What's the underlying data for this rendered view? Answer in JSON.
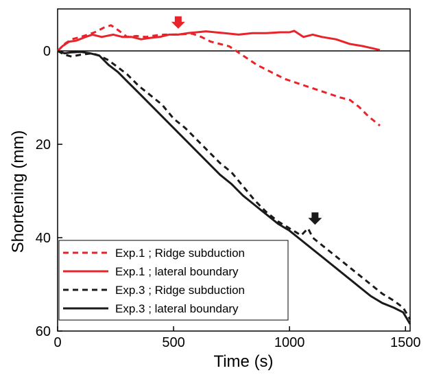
{
  "chart_data": {
    "type": "line",
    "title": "",
    "xlabel": "Time (s)",
    "ylabel": "Shortening (mm)",
    "xlim": [
      0,
      1520
    ],
    "ylim": [
      0,
      60
    ],
    "y_axis_inverted": true,
    "y_axis_extends_above_zero_to": -9,
    "xticks": [
      0,
      500,
      1000,
      1500
    ],
    "yticks": [
      0,
      20,
      40,
      60
    ],
    "grid": false,
    "zero_line": true,
    "legend_position": "bottom-left",
    "series": [
      {
        "name": "Exp.1 ; Ridge subduction",
        "color": "#e8232a",
        "dash": "dashed",
        "x": [
          0,
          30,
          60,
          100,
          130,
          160,
          200,
          230,
          260,
          300,
          340,
          380,
          420,
          460,
          500,
          540,
          580,
          620,
          660,
          700,
          740,
          800,
          860,
          920,
          980,
          1040,
          1100,
          1160,
          1220,
          1260,
          1300,
          1340,
          1390
        ],
        "y": [
          0,
          -1.5,
          -2.5,
          -3,
          -3.5,
          -4,
          -5,
          -5.5,
          -4.5,
          -3,
          -3.2,
          -3,
          -3.3,
          -3.5,
          -3.5,
          -3.6,
          -3.7,
          -3.0,
          -2.0,
          -1.5,
          -1.0,
          1.0,
          3.0,
          4.5,
          6.0,
          7.0,
          8.0,
          9.0,
          10.0,
          10.5,
          12.0,
          14.0,
          16.0
        ]
      },
      {
        "name": "Exp.1 ; lateral boundary",
        "color": "#e8232a",
        "dash": "solid",
        "x": [
          0,
          20,
          50,
          80,
          120,
          150,
          190,
          240,
          280,
          320,
          360,
          400,
          440,
          480,
          520,
          560,
          600,
          640,
          680,
          720,
          780,
          840,
          900,
          960,
          1000,
          1020,
          1060,
          1100,
          1140,
          1200,
          1260,
          1320,
          1390
        ],
        "y": [
          0,
          -1.0,
          -2.0,
          -2.2,
          -3.0,
          -3.5,
          -3.0,
          -3.5,
          -3.0,
          -3.0,
          -2.5,
          -2.8,
          -3.0,
          -3.5,
          -3.5,
          -3.8,
          -4.0,
          -4.2,
          -4.0,
          -3.8,
          -3.5,
          -3.8,
          -3.8,
          -4.0,
          -4.0,
          -4.3,
          -3.0,
          -3.5,
          -3.0,
          -2.5,
          -1.5,
          -1.0,
          -0.2
        ]
      },
      {
        "name": "Exp.3 ; Ridge subduction",
        "color": "#1a1a1a",
        "dash": "dashed",
        "x": [
          0,
          30,
          60,
          100,
          150,
          180,
          220,
          260,
          300,
          350,
          400,
          450,
          500,
          550,
          600,
          650,
          700,
          750,
          800,
          850,
          900,
          950,
          1000,
          1050,
          1080,
          1100,
          1150,
          1200,
          1250,
          1300,
          1350,
          1400,
          1450,
          1490,
          1520
        ],
        "y": [
          0,
          0.8,
          1.2,
          0.8,
          0.5,
          1.0,
          2.0,
          3.5,
          5.0,
          7.5,
          9.5,
          11.5,
          14.5,
          16.5,
          19.0,
          21.5,
          24.0,
          26.0,
          29.0,
          32.0,
          34.5,
          36.5,
          38.0,
          39.5,
          38.0,
          40.0,
          42.0,
          44.0,
          46.0,
          48.0,
          50.0,
          52.0,
          53.5,
          55.0,
          57.5
        ]
      },
      {
        "name": "Exp.3 ; lateral boundary",
        "color": "#1a1a1a",
        "dash": "solid",
        "x": [
          0,
          30,
          60,
          100,
          140,
          180,
          220,
          260,
          300,
          350,
          400,
          450,
          500,
          550,
          600,
          650,
          700,
          750,
          800,
          850,
          900,
          950,
          1000,
          1050,
          1100,
          1150,
          1200,
          1250,
          1300,
          1350,
          1400,
          1450,
          1490,
          1520
        ],
        "y": [
          0,
          0.5,
          0.3,
          0.2,
          0.5,
          1.0,
          3.0,
          4.5,
          6.5,
          9.0,
          11.5,
          14.0,
          16.5,
          19.0,
          21.5,
          24.0,
          26.5,
          28.5,
          31.0,
          33.0,
          35.0,
          37.0,
          38.5,
          40.5,
          42.5,
          44.5,
          46.5,
          48.5,
          50.5,
          52.5,
          54.0,
          55.0,
          56.0,
          58.5
        ]
      }
    ],
    "annotations": [
      {
        "type": "arrow-down",
        "color": "#e8232a",
        "x": 520,
        "y": -5.5,
        "meaning": "marker above Exp.1 ridge-subduction curve"
      },
      {
        "type": "arrow-down",
        "color": "#1a1a1a",
        "x": 1110,
        "y": 36.5,
        "meaning": "marker above Exp.3 ridge-subduction curve"
      }
    ]
  }
}
